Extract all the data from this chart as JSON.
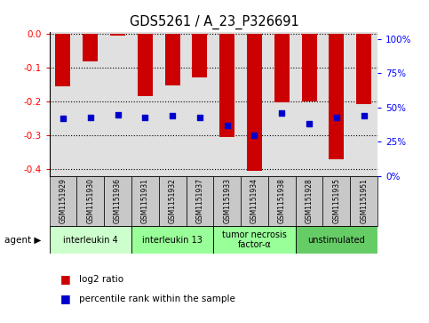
{
  "title": "GDS5261 / A_23_P326691",
  "samples": [
    "GSM1151929",
    "GSM1151930",
    "GSM1151936",
    "GSM1151931",
    "GSM1151932",
    "GSM1151937",
    "GSM1151933",
    "GSM1151934",
    "GSM1151938",
    "GSM1151928",
    "GSM1151935",
    "GSM1151951"
  ],
  "log2_ratio": [
    -0.155,
    -0.082,
    -0.005,
    -0.183,
    -0.152,
    -0.128,
    -0.305,
    -0.405,
    -0.202,
    -0.2,
    -0.37,
    -0.207
  ],
  "percentile_rank": [
    42,
    43,
    45,
    43,
    44,
    43,
    37,
    30,
    46,
    38,
    43,
    44
  ],
  "agents": [
    {
      "label": "interleukin 4",
      "start": 0,
      "end": 3,
      "color": "#ccffcc"
    },
    {
      "label": "interleukin 13",
      "start": 3,
      "end": 6,
      "color": "#99ff99"
    },
    {
      "label": "tumor necrosis\nfactor-α",
      "start": 6,
      "end": 9,
      "color": "#99ff99"
    },
    {
      "label": "unstimulated",
      "start": 9,
      "end": 12,
      "color": "#66cc66"
    }
  ],
  "ylim_left": [
    -0.42,
    0.005
  ],
  "ylim_right": [
    0,
    105
  ],
  "left_ticks": [
    0,
    -0.1,
    -0.2,
    -0.3,
    -0.4
  ],
  "right_ticks": [
    0,
    25,
    50,
    75,
    100
  ],
  "bar_color": "#cc0000",
  "dot_color": "#0000cc",
  "plot_bg": "#e0e0e0",
  "sample_bg": "#c8c8c8"
}
